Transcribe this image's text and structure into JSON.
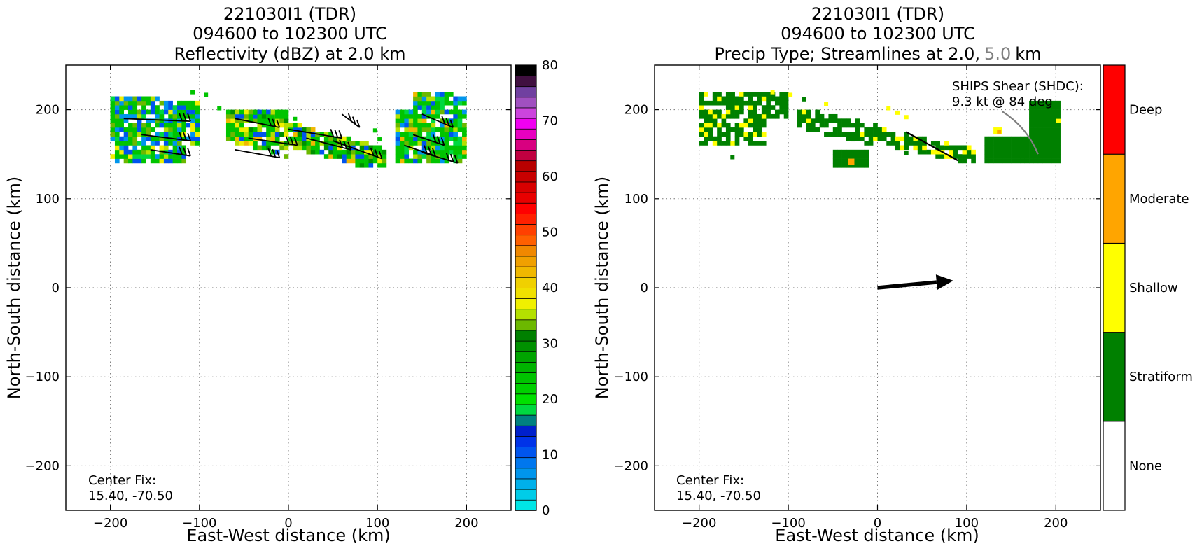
{
  "chart_data": [
    {
      "type": "heatmap",
      "title_lines": [
        "221030I1 (TDR)",
        "094600 to 102300 UTC",
        "Reflectivity (dBZ) at 2.0 km"
      ],
      "xlabel": "East-West distance (km)",
      "ylabel": "North-South distance (km)",
      "xlim": [
        -250,
        250
      ],
      "ylim": [
        -250,
        250
      ],
      "xticks": [
        -200,
        -100,
        0,
        100,
        200
      ],
      "xtick_labels": [
        "−200",
        "−100",
        "0",
        "100",
        "200"
      ],
      "yticks": [
        -200,
        -100,
        0,
        100,
        200
      ],
      "ytick_labels": [
        "−200",
        "−100",
        "0",
        "100",
        "200"
      ],
      "grid": true,
      "annotation_lines": [
        "Center Fix:",
        "15.40, -70.50"
      ],
      "colorbar": {
        "range": [
          0,
          80
        ],
        "ticks": [
          0,
          10,
          20,
          30,
          40,
          50,
          60,
          70,
          80
        ],
        "colors": [
          "#00e5e5",
          "#00cce8",
          "#00b0ea",
          "#0095ec",
          "#0077ee",
          "#0055ee",
          "#0033e8",
          "#0020cc",
          "#008080",
          "#00d840",
          "#00e000",
          "#00d000",
          "#00c400",
          "#00b400",
          "#00a400",
          "#009000",
          "#008000",
          "#6cb800",
          "#b4e000",
          "#f0f000",
          "#f0e000",
          "#f0d000",
          "#f0b800",
          "#f0a000",
          "#f08800",
          "#ff6000",
          "#ff4000",
          "#ff2000",
          "#ff0000",
          "#e80000",
          "#d80000",
          "#c80000",
          "#b80000",
          "#c00040",
          "#d80080",
          "#e800c0",
          "#f000f0",
          "#cc44dd",
          "#a050c0",
          "#7040a0",
          "#401040",
          "#000000"
        ]
      },
      "echo_regions": [
        {
          "label": "west",
          "x": [
            -200,
            -100
          ],
          "y": [
            140,
            220
          ]
        },
        {
          "label": "central",
          "x": [
            -70,
            110
          ],
          "y": [
            135,
            200
          ]
        },
        {
          "label": "east",
          "x": [
            120,
            200
          ],
          "y": [
            140,
            220
          ]
        }
      ]
    },
    {
      "type": "heatmap",
      "title_lines": [
        "221030I1 (TDR)",
        "094600 to 102300 UTC"
      ],
      "title_line3_parts": [
        "Precip Type; Streamlines at 2.0,",
        "5.0",
        "km"
      ],
      "xlabel": "East-West distance (km)",
      "ylabel": "North-South distance (km)",
      "xlim": [
        -250,
        250
      ],
      "ylim": [
        -250,
        250
      ],
      "xticks": [
        -200,
        -100,
        0,
        100,
        200
      ],
      "xtick_labels": [
        "−200",
        "−100",
        "0",
        "100",
        "200"
      ],
      "yticks": [
        -200,
        -100,
        0,
        100,
        200
      ],
      "ytick_labels": [
        "−200",
        "−100",
        "0",
        "100",
        "200"
      ],
      "grid": true,
      "annotation_lines": [
        "Center Fix:",
        "15.40, -70.50"
      ],
      "shear_annotation_lines": [
        "SHIPS Shear (SHDC):",
        "9.3 kt @ 84 deg"
      ],
      "shear_vector": {
        "from": [
          0,
          0
        ],
        "to": [
          85,
          8
        ],
        "speed_kt": 9.3,
        "direction_deg": 84
      },
      "precip_categories": [
        {
          "name": "None",
          "color": "#ffffff"
        },
        {
          "name": "Stratiform",
          "color": "#008000"
        },
        {
          "name": "Shallow",
          "color": "#ffff00"
        },
        {
          "name": "Moderate",
          "color": "#ffa500"
        },
        {
          "name": "Deep",
          "color": "#ff0000"
        }
      ],
      "echo_regions": [
        {
          "label": "west",
          "x": [
            -200,
            -100
          ],
          "y": [
            160,
            220
          ]
        },
        {
          "label": "central",
          "x": [
            -90,
            110
          ],
          "y": [
            135,
            200
          ]
        },
        {
          "label": "east",
          "x": [
            120,
            205
          ],
          "y": [
            140,
            210
          ]
        }
      ]
    }
  ],
  "colors": {
    "grey_text": "#808080",
    "stream_grey": "#808080"
  }
}
